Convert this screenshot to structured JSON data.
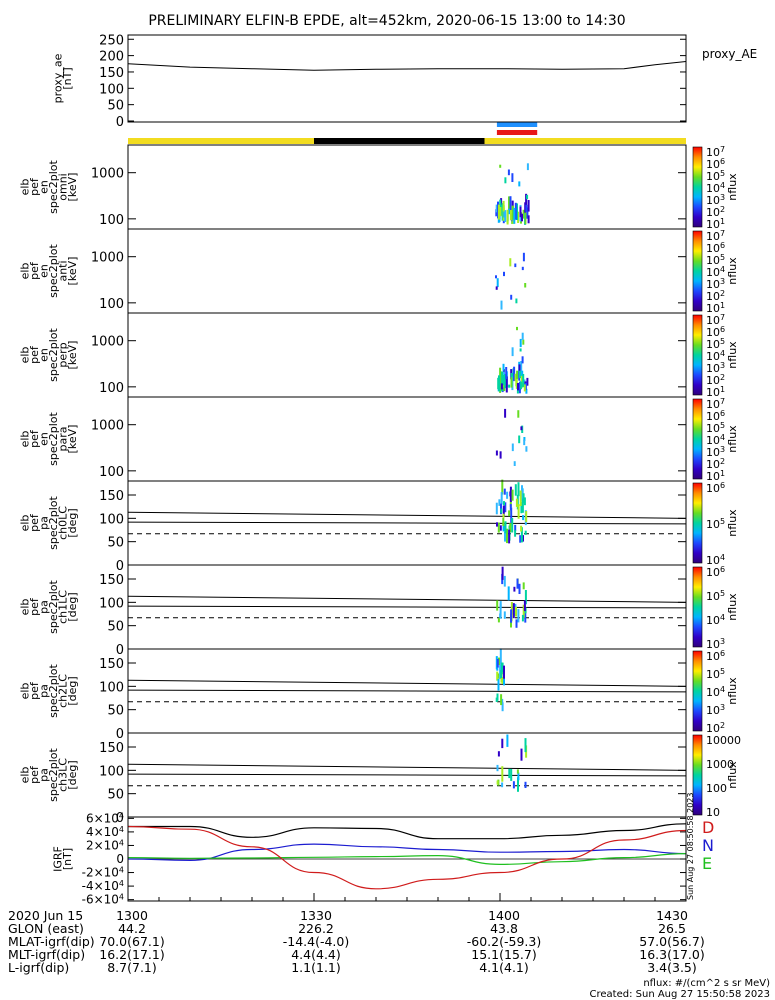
{
  "title": "PRELIMINARY ELFIN-B EPDE, alt=452km, 2020-06-15 13:00 to 14:30",
  "colors": {
    "black": "#000000",
    "yellow": "#f2dc20",
    "blue": "#1e90ff",
    "red": "#e81818",
    "green": "#1fbf1f",
    "trace_blue": "#1c1cd0",
    "trace_red": "#d01c1c"
  },
  "colorbar_gradient": [
    "#ff0000",
    "#ff8c00",
    "#ffee00",
    "#66dd22",
    "#00d4a0",
    "#00b4ff",
    "#1e48ff",
    "#3000c8",
    "#30007a"
  ],
  "status_bars": {
    "science_bar": [
      {
        "start_min": 0,
        "end_min": 30,
        "color": "yellow"
      },
      {
        "start_min": 30,
        "end_min": 57.5,
        "color": "black"
      },
      {
        "start_min": 57.5,
        "end_min": 90,
        "color": "yellow"
      }
    ],
    "blue_bar": {
      "start_min": 59.5,
      "end_min": 66
    },
    "red_bar": {
      "start_min": 59.5,
      "end_min": 66
    }
  },
  "chart_data": [
    {
      "id": "proxy_ae",
      "type": "line",
      "ylabel": [
        "proxy_ae",
        "[nT]"
      ],
      "right_label": "proxy_AE",
      "yticks": [
        "250",
        "200",
        "150",
        "100",
        "50",
        "0"
      ],
      "ylim": [
        0,
        260
      ],
      "x_min": [
        0,
        10,
        20,
        30,
        40,
        50,
        60,
        70,
        80,
        85,
        90
      ],
      "values": [
        175,
        165,
        160,
        155,
        158,
        160,
        160,
        158,
        160,
        172,
        182
      ]
    },
    {
      "id": "en_omni",
      "type": "heatmap",
      "ylabel": [
        "elb",
        "pef",
        "en",
        "spec2plot",
        "omni",
        "[keV]"
      ],
      "yticks": [
        "1000",
        "100"
      ],
      "cbar_title": "nflux",
      "cbar_ticks": [
        "10^7",
        "10^6",
        "10^5",
        "10^4",
        "10^3",
        "10^2",
        "10^1"
      ],
      "active_window_min": [
        59.2,
        64.5
      ],
      "log_energy_range_keV": [
        1.78,
        3.1
      ]
    },
    {
      "id": "en_anti",
      "type": "heatmap",
      "ylabel": [
        "elb",
        "pef",
        "en",
        "spec2plot",
        "anti",
        "[keV]"
      ],
      "yticks": [
        "1000",
        "100"
      ],
      "cbar_title": "nflux",
      "cbar_ticks": [
        "10^7",
        "10^6",
        "10^5",
        "10^4",
        "10^3",
        "10^2",
        "10^1"
      ],
      "active_window_min": [
        59.2,
        64.5
      ],
      "log_energy_range_keV": [
        1.78,
        3.1
      ]
    },
    {
      "id": "en_perp",
      "type": "heatmap",
      "ylabel": [
        "elb",
        "pef",
        "en",
        "spec2plot",
        "perp",
        "[keV]"
      ],
      "yticks": [
        "1000",
        "100"
      ],
      "cbar_title": "nflux",
      "cbar_ticks": [
        "10^7",
        "10^6",
        "10^5",
        "10^4",
        "10^3",
        "10^2",
        "10^1"
      ],
      "active_window_min": [
        59.2,
        64.5
      ],
      "log_energy_range_keV": [
        1.78,
        3.1
      ]
    },
    {
      "id": "en_para",
      "type": "heatmap",
      "ylabel": [
        "elb",
        "pef",
        "en",
        "spec2plot",
        "para",
        "[keV]"
      ],
      "yticks": [
        "1000",
        "100"
      ],
      "cbar_title": "nflux",
      "cbar_ticks": [
        "10^7",
        "10^6",
        "10^5",
        "10^4",
        "10^3",
        "10^2",
        "10^1"
      ],
      "active_window_min": [
        59.2,
        64.5
      ],
      "log_energy_range_keV": [
        1.78,
        3.1
      ]
    },
    {
      "id": "pa_ch0",
      "type": "heatmap",
      "ylabel": [
        "elb",
        "pef",
        "pa",
        "spec2plot",
        "ch0LC",
        "[deg]"
      ],
      "yticks": [
        "150",
        "100",
        "50",
        "0"
      ],
      "cbar_title": "nflux",
      "cbar_ticks": [
        "10^6",
        "10^5",
        "10^4"
      ],
      "lines_deg": {
        "solid_upper": [
          113,
          100
        ],
        "solid_lower": [
          92,
          88
        ],
        "dashed": 67
      }
    },
    {
      "id": "pa_ch1",
      "type": "heatmap",
      "ylabel": [
        "elb",
        "pef",
        "pa",
        "spec2plot",
        "ch1LC",
        "[deg]"
      ],
      "yticks": [
        "150",
        "100",
        "50",
        "0"
      ],
      "cbar_title": "nflux",
      "cbar_ticks": [
        "10^6",
        "10^5",
        "10^4",
        "10^3"
      ],
      "lines_deg": {
        "solid_upper": [
          113,
          100
        ],
        "solid_lower": [
          92,
          88
        ],
        "dashed": 67
      }
    },
    {
      "id": "pa_ch2",
      "type": "heatmap",
      "ylabel": [
        "elb",
        "pef",
        "pa",
        "spec2plot",
        "ch2LC",
        "[deg]"
      ],
      "yticks": [
        "150",
        "100",
        "50",
        "0"
      ],
      "cbar_title": "nflux",
      "cbar_ticks": [
        "10^6",
        "10^5",
        "10^4",
        "10^3",
        "10^2"
      ],
      "lines_deg": {
        "solid_upper": [
          113,
          100
        ],
        "solid_lower": [
          92,
          88
        ],
        "dashed": 67
      }
    },
    {
      "id": "pa_ch3",
      "type": "heatmap",
      "ylabel": [
        "elb",
        "pef",
        "pa",
        "spec2plot",
        "ch3LC",
        "[deg]"
      ],
      "yticks": [
        "150",
        "100",
        "50",
        "0"
      ],
      "cbar_title": "nflux",
      "cbar_ticks": [
        "10000",
        "1000",
        "100",
        "10"
      ],
      "lines_deg": {
        "solid_upper": [
          113,
          100
        ],
        "solid_lower": [
          92,
          88
        ],
        "dashed": 67
      }
    },
    {
      "id": "igrf",
      "type": "line",
      "ylabel": [
        "IGRF",
        "[nT]"
      ],
      "yticks": [
        "6×10^4",
        "4×10^4",
        "2×10^4",
        "0",
        "-2×10^4",
        "-4×10^4",
        "-6×10^4"
      ],
      "ylim": [
        -62000,
        62000
      ],
      "legend": [
        "D",
        "N",
        "E"
      ],
      "x_min": [
        0,
        10,
        20,
        30,
        40,
        50,
        60,
        70,
        80,
        90
      ],
      "series": [
        {
          "name": "black",
          "values": [
            48000,
            48000,
            32000,
            46000,
            45000,
            30000,
            30000,
            35000,
            42000,
            52000
          ]
        },
        {
          "name": "blue",
          "values": [
            0,
            -2000,
            14000,
            22000,
            18000,
            14000,
            10000,
            11000,
            14000,
            8000
          ]
        },
        {
          "name": "green",
          "values": [
            2000,
            1000,
            1500,
            2500,
            3500,
            5000,
            -8000,
            -4000,
            2000,
            8000
          ]
        },
        {
          "name": "red",
          "values": [
            48000,
            44000,
            18000,
            -20000,
            -44000,
            -30000,
            -20000,
            0,
            28000,
            42000
          ]
        }
      ]
    }
  ],
  "footer": {
    "row_labels": [
      "2020 Jun 15",
      "GLON (east)",
      "MLAT-igrf(dip)",
      "MLT-igrf(dip)",
      "L-igrf(dip)"
    ],
    "columns": [
      {
        "t": "1300",
        "glon": "44.2",
        "mlat": "70.0(67.1)",
        "mlt": "16.2(17.1)",
        "l": "8.7(7.1)"
      },
      {
        "t": "1330",
        "glon": "226.2",
        "mlat": "-14.4(-4.0)",
        "mlt": "4.4(4.4)",
        "l": "1.1(1.1)"
      },
      {
        "t": "1400",
        "glon": "43.8",
        "mlat": "-60.2(-59.3)",
        "mlt": "15.1(15.7)",
        "l": "4.1(4.1)"
      },
      {
        "t": "1430",
        "glon": "26.5",
        "mlat": "57.0(56.7)",
        "mlt": "16.3(17.0)",
        "l": "3.4(3.5)"
      }
    ],
    "units_note": "nflux: #/(cm^2 s sr MeV)",
    "created": "Created: Sun Aug 27 15:50:58 2023",
    "side_stamp": "Sun Aug 27 08:50:58 2023"
  }
}
